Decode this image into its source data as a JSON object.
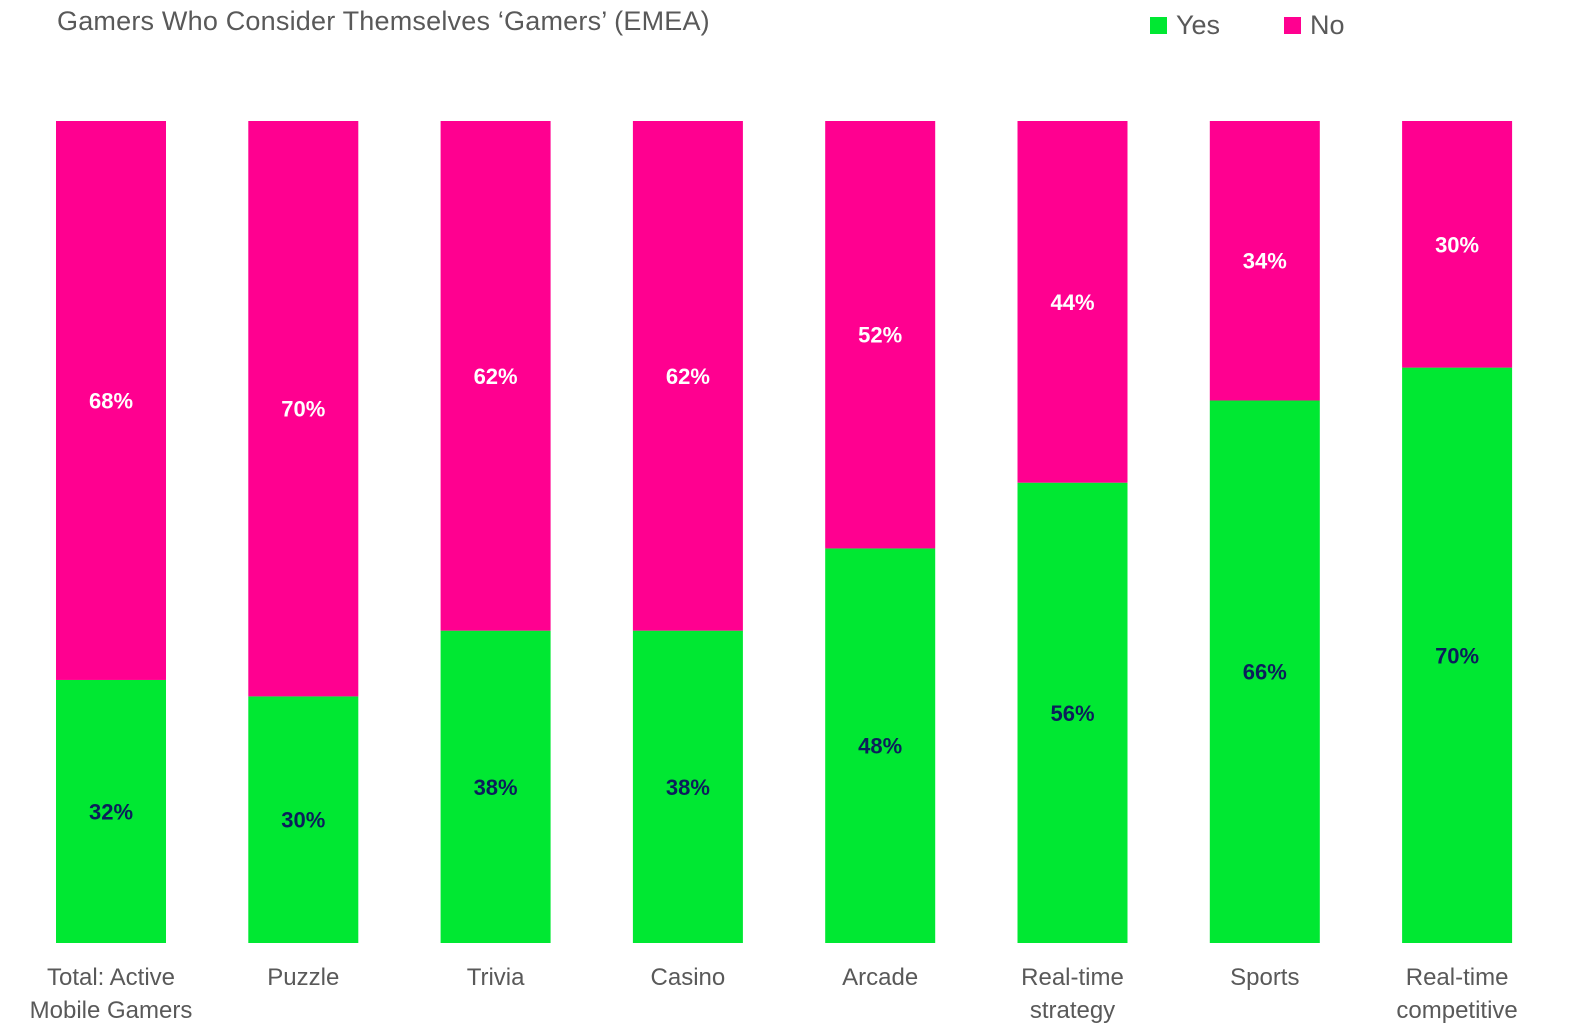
{
  "chart_data": {
    "type": "bar",
    "stacked": true,
    "title": "Gamers Who Consider Themselves ‘Gamers’ (EMEA)",
    "categories": [
      [
        "Total: Active",
        "Mobile Gamers"
      ],
      [
        "Puzzle"
      ],
      [
        "Trivia"
      ],
      [
        "Casino"
      ],
      [
        "Arcade"
      ],
      [
        "Real-time",
        "strategy"
      ],
      [
        "Sports"
      ],
      [
        "Real-time",
        "competitive"
      ]
    ],
    "series": [
      {
        "name": "Yes",
        "color": "#00E832",
        "label_color": "#0B1E5B",
        "values": [
          32,
          30,
          38,
          38,
          48,
          56,
          66,
          70
        ],
        "labels": [
          "32%",
          "30%",
          "38%",
          "38%",
          "48%",
          "56%",
          "66%",
          "70%"
        ]
      },
      {
        "name": "No",
        "color": "#FF0090",
        "label_color": "#FFFFFF",
        "values": [
          68,
          70,
          62,
          62,
          52,
          44,
          34,
          30
        ],
        "labels": [
          "68%",
          "70%",
          "62%",
          "62%",
          "52%",
          "44%",
          "34%",
          "30%"
        ]
      }
    ],
    "ylim": [
      0,
      100
    ],
    "grid": false,
    "legend_position": "top-right"
  }
}
